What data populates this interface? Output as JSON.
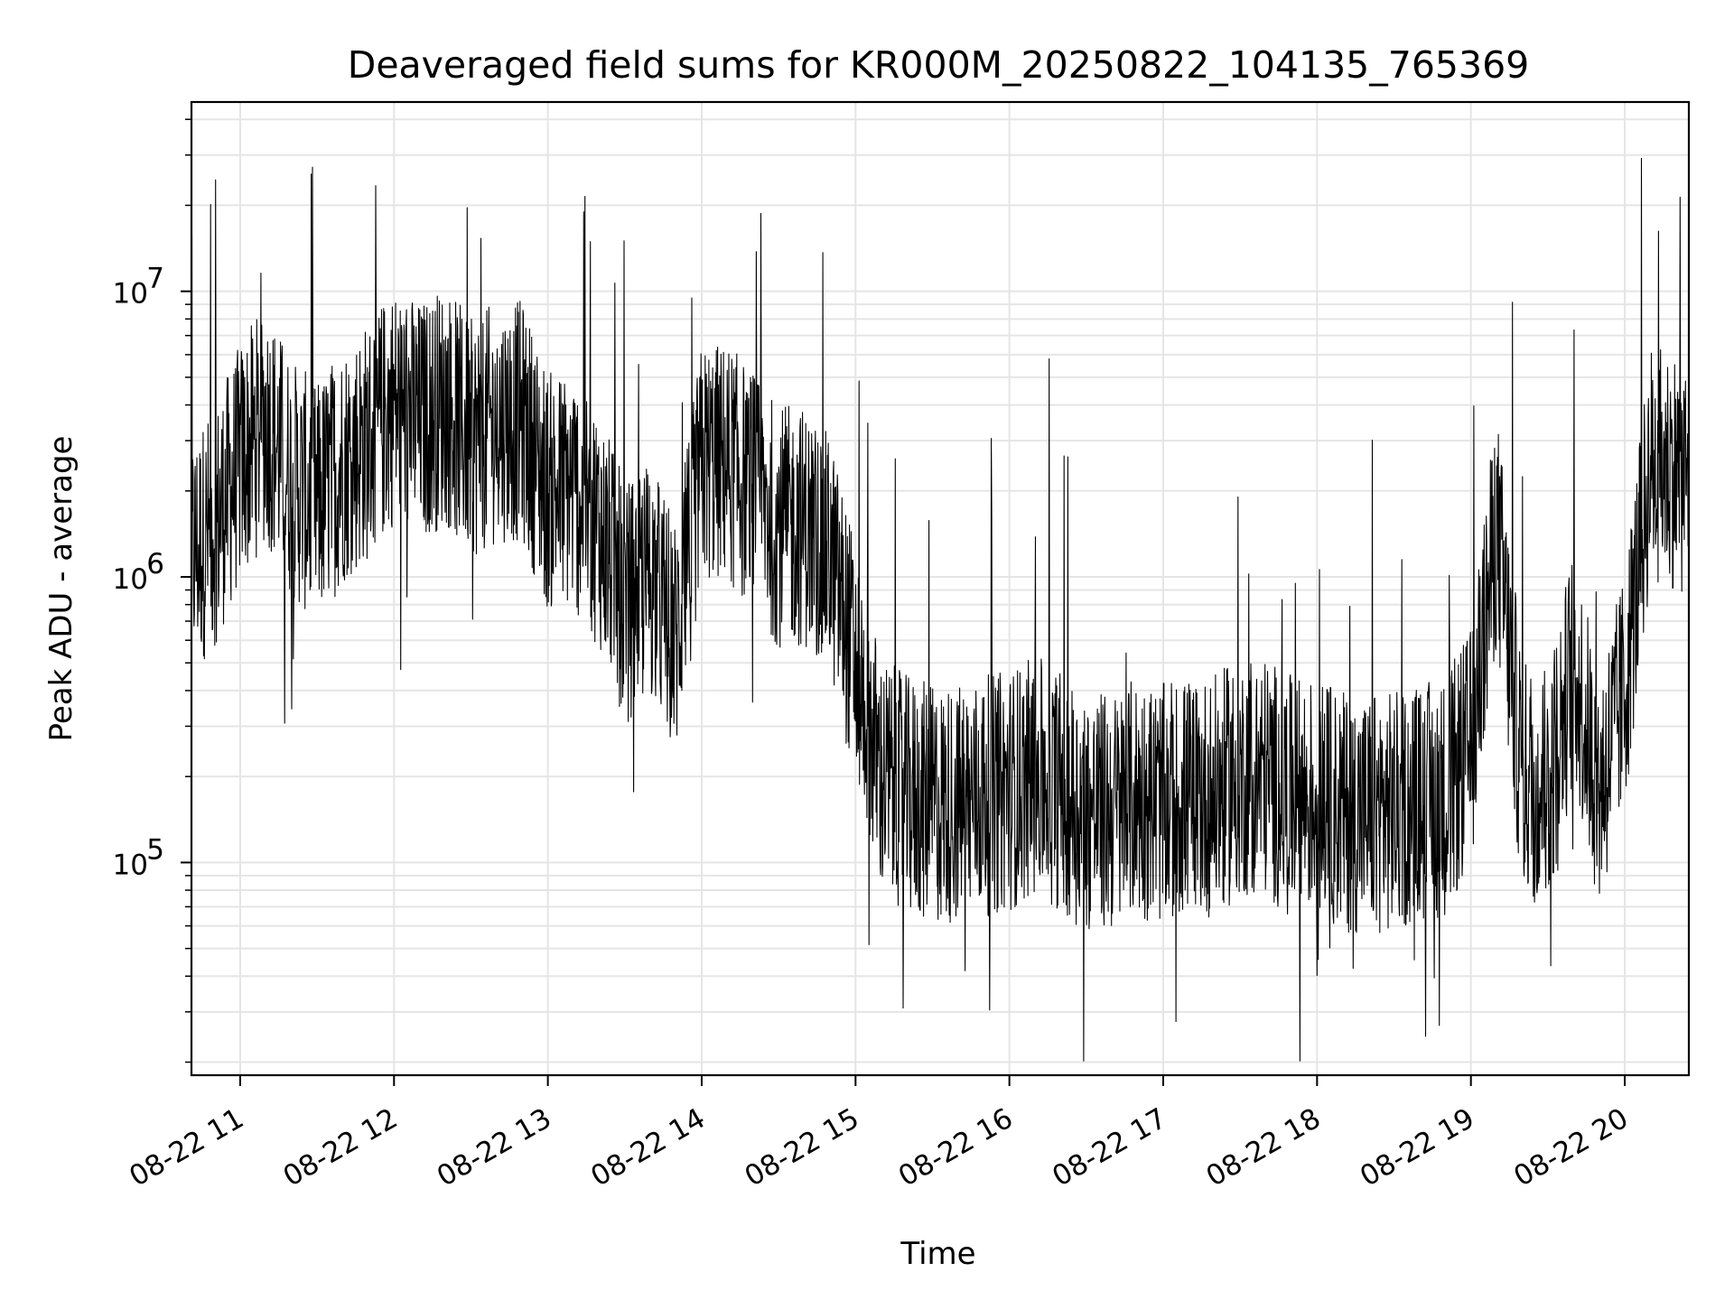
{
  "chart_data": {
    "type": "line",
    "title": "Deaveraged field sums for KR000M_20250822_104135_765369",
    "xlabel": "Time",
    "ylabel": "Peak ADU - average",
    "yscale": "log",
    "grid": true,
    "line_color": "#000000",
    "grid_color": "#e5e5e5",
    "xlim": [
      "2025-08-22 10:41",
      "2025-08-22 20:25"
    ],
    "ylim": [
      18000,
      46000000
    ],
    "xticks": [
      {
        "t": "2025-08-22 11:00",
        "label": "08-22 11"
      },
      {
        "t": "2025-08-22 12:00",
        "label": "08-22 12"
      },
      {
        "t": "2025-08-22 13:00",
        "label": "08-22 13"
      },
      {
        "t": "2025-08-22 14:00",
        "label": "08-22 14"
      },
      {
        "t": "2025-08-22 15:00",
        "label": "08-22 15"
      },
      {
        "t": "2025-08-22 16:00",
        "label": "08-22 16"
      },
      {
        "t": "2025-08-22 17:00",
        "label": "08-22 17"
      },
      {
        "t": "2025-08-22 18:00",
        "label": "08-22 18"
      },
      {
        "t": "2025-08-22 19:00",
        "label": "08-22 19"
      },
      {
        "t": "2025-08-22 20:00",
        "label": "08-22 20"
      }
    ],
    "yticks": [
      {
        "value": 100000,
        "base": "10",
        "exp": "5"
      },
      {
        "value": 1000000,
        "base": "10",
        "exp": "6"
      },
      {
        "value": 10000000,
        "base": "10",
        "exp": "7"
      }
    ],
    "series": [
      {
        "x": [
          "2025-08-22 10:41",
          "2025-08-22 10:50",
          "2025-08-22 11:00",
          "2025-08-22 11:10",
          "2025-08-22 11:20",
          "2025-08-22 11:30",
          "2025-08-22 11:40",
          "2025-08-22 11:50",
          "2025-08-22 12:00",
          "2025-08-22 12:10",
          "2025-08-22 12:20",
          "2025-08-22 12:30",
          "2025-08-22 12:40",
          "2025-08-22 12:50",
          "2025-08-22 13:00",
          "2025-08-22 13:10",
          "2025-08-22 13:20",
          "2025-08-22 13:30",
          "2025-08-22 13:40",
          "2025-08-22 13:50",
          "2025-08-22 14:00",
          "2025-08-22 14:10",
          "2025-08-22 14:20",
          "2025-08-22 14:30",
          "2025-08-22 14:40",
          "2025-08-22 14:50",
          "2025-08-22 15:00",
          "2025-08-22 15:10",
          "2025-08-22 15:20",
          "2025-08-22 15:30",
          "2025-08-22 15:40",
          "2025-08-22 15:50",
          "2025-08-22 16:00",
          "2025-08-22 16:10",
          "2025-08-22 16:20",
          "2025-08-22 16:30",
          "2025-08-22 16:40",
          "2025-08-22 16:50",
          "2025-08-22 17:00",
          "2025-08-22 17:10",
          "2025-08-22 17:20",
          "2025-08-22 17:30",
          "2025-08-22 17:40",
          "2025-08-22 17:50",
          "2025-08-22 18:00",
          "2025-08-22 18:10",
          "2025-08-22 18:20",
          "2025-08-22 18:30",
          "2025-08-22 18:40",
          "2025-08-22 18:50",
          "2025-08-22 19:00",
          "2025-08-22 19:10",
          "2025-08-22 19:20",
          "2025-08-22 19:30",
          "2025-08-22 19:40",
          "2025-08-22 19:50",
          "2025-08-22 20:00",
          "2025-08-22 20:10",
          "2025-08-22 20:20",
          "2025-08-22 20:25"
        ],
        "y": [
          1200000,
          1500000,
          2500000,
          3500000,
          2200000,
          1800000,
          2500000,
          3000000,
          4000000,
          3500000,
          4000000,
          3000000,
          3500000,
          3500000,
          2000000,
          2000000,
          1500000,
          800000,
          1000000,
          600000,
          2500000,
          2500000,
          2000000,
          1500000,
          1500000,
          1200000,
          500000,
          200000,
          170000,
          160000,
          160000,
          170000,
          180000,
          200000,
          180000,
          150000,
          150000,
          170000,
          160000,
          170000,
          170000,
          200000,
          200000,
          170000,
          170000,
          150000,
          150000,
          150000,
          160000,
          170000,
          250000,
          1500000,
          200000,
          180000,
          500000,
          180000,
          400000,
          2500000,
          2400000,
          2200000
        ]
      }
    ]
  }
}
